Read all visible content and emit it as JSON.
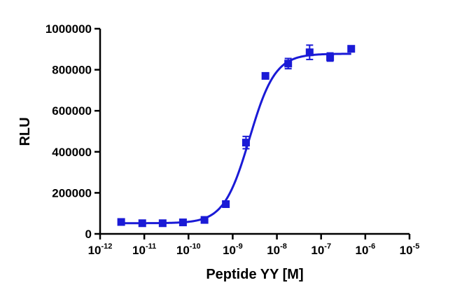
{
  "chart_data": {
    "type": "scatter",
    "xlabel": "Peptide YY [M]",
    "ylabel": "RLU",
    "x_scale": "log",
    "xlim": [
      1e-12,
      1e-05
    ],
    "ylim": [
      0,
      1000000
    ],
    "x_ticks": [
      {
        "base": "10",
        "exp": "-12"
      },
      {
        "base": "10",
        "exp": "-11"
      },
      {
        "base": "10",
        "exp": "-10"
      },
      {
        "base": "10",
        "exp": "-9"
      },
      {
        "base": "10",
        "exp": "-8"
      },
      {
        "base": "10",
        "exp": "-7"
      },
      {
        "base": "10",
        "exp": "-6"
      },
      {
        "base": "10",
        "exp": "-5"
      }
    ],
    "y_ticks": [
      "0",
      "200000",
      "400000",
      "600000",
      "800000",
      "1000000"
    ],
    "grid": false,
    "color": "#1a1ad6",
    "series": [
      {
        "x": [
          3e-12,
          9e-12,
          2.6e-11,
          7.5e-11,
          2.3e-10,
          7e-10,
          2e-09,
          5.5e-09,
          1.8e-08,
          5.5e-08,
          1.6e-07,
          4.8e-07
        ],
        "y": [
          58000,
          52000,
          52000,
          56000,
          68000,
          145000,
          445000,
          770000,
          830000,
          885000,
          862000,
          902000
        ],
        "error": [
          6000,
          5000,
          5000,
          5000,
          6000,
          10000,
          30000,
          12000,
          25000,
          35000,
          20000,
          8000
        ]
      }
    ],
    "fit": {
      "type": "sigmoid",
      "bottom": 52000,
      "top": 878000,
      "log_ec50": -8.62,
      "hill": 1.5
    }
  }
}
